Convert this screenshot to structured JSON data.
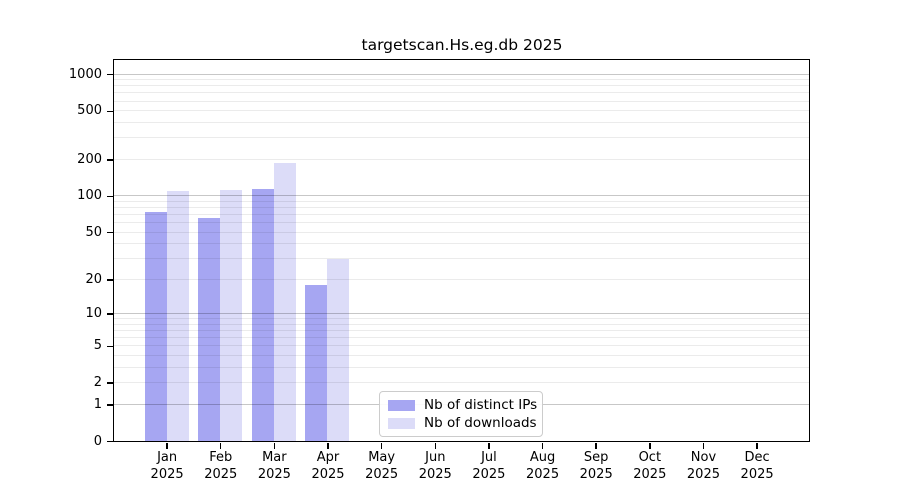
{
  "figure": {
    "background": "#ffffff"
  },
  "chart_data": {
    "type": "bar",
    "title": "targetscan.Hs.eg.db 2025",
    "xlabel": "",
    "ylabel": "",
    "x": {
      "months": [
        "Jan",
        "Feb",
        "Mar",
        "Apr",
        "May",
        "Jun",
        "Jul",
        "Aug",
        "Sep",
        "Oct",
        "Nov",
        "Dec"
      ],
      "year": "2025"
    },
    "series": [
      {
        "name": "Nb of distinct IPs",
        "color": "#a6a6f2",
        "values": [
          73,
          65,
          114,
          18,
          0,
          0,
          0,
          0,
          0,
          0,
          0,
          0
        ]
      },
      {
        "name": "Nb of downloads",
        "color": "#dcdcf8",
        "values": [
          109,
          111,
          188,
          30,
          0,
          0,
          0,
          0,
          0,
          0,
          0,
          0
        ]
      }
    ],
    "y_axis": {
      "scale": "log1p",
      "ticks": [
        0,
        1,
        2,
        5,
        10,
        20,
        50,
        100,
        200,
        500,
        1000
      ],
      "max": 1000
    },
    "grid": {
      "major_values": [
        1,
        10,
        100,
        1000
      ],
      "minor_multiples": [
        2,
        3,
        4,
        5,
        6,
        7,
        8,
        9
      ],
      "minor_decades": [
        1,
        10,
        100
      ],
      "major_color": "rgba(0,0,0,0.22)",
      "minor_color": "rgba(0,0,0,0.08)"
    },
    "legend_position": "bottom-center-left"
  }
}
